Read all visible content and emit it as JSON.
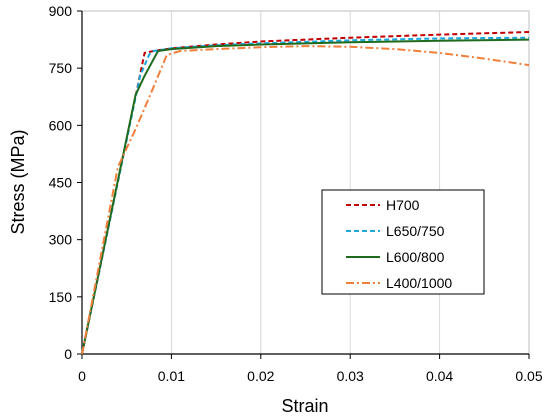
{
  "chart_data": {
    "type": "line",
    "title": "",
    "xlabel": "Strain",
    "ylabel": "Stress (MPa)",
    "xlim": [
      0,
      0.05
    ],
    "ylim": [
      0,
      900
    ],
    "xticks": [
      0,
      0.01,
      0.02,
      0.03,
      0.04,
      0.05
    ],
    "xtick_labels": [
      "0",
      "0.01",
      "0.02",
      "0.03",
      "0.04",
      "0.05"
    ],
    "yticks": [
      0,
      150,
      300,
      450,
      600,
      750,
      900
    ],
    "ytick_labels": [
      "0",
      "150",
      "300",
      "450",
      "600",
      "750",
      "900"
    ],
    "grid": "vertical",
    "legend_position": "center-right",
    "series": [
      {
        "name": "H700",
        "color": "#c00000",
        "dash": "dashed",
        "x": [
          0,
          0.007,
          0.008,
          0.01,
          0.015,
          0.02,
          0.03,
          0.04,
          0.05
        ],
        "y": [
          0,
          790,
          795,
          802,
          812,
          820,
          830,
          838,
          845
        ]
      },
      {
        "name": "L650/750",
        "color": "#1aa7e0",
        "dash": "dashed",
        "x": [
          0,
          0.0065,
          0.0075,
          0.008,
          0.01,
          0.015,
          0.02,
          0.03,
          0.04,
          0.05
        ],
        "y": [
          0,
          730,
          785,
          795,
          802,
          810,
          815,
          823,
          828,
          830
        ]
      },
      {
        "name": "L600/800",
        "color": "#1e6b1e",
        "dash": "solid",
        "x": [
          0,
          0.006,
          0.007,
          0.0085,
          0.01,
          0.015,
          0.02,
          0.03,
          0.04,
          0.05
        ],
        "y": [
          0,
          680,
          730,
          795,
          800,
          808,
          812,
          818,
          822,
          825
        ]
      },
      {
        "name": "L400/1000",
        "color": "#f07f3c",
        "dash": "dashdot",
        "x": [
          0,
          0.004,
          0.006,
          0.008,
          0.0095,
          0.011,
          0.015,
          0.02,
          0.025,
          0.03,
          0.035,
          0.04,
          0.045,
          0.05
        ],
        "y": [
          0,
          490,
          590,
          700,
          785,
          795,
          800,
          805,
          808,
          806,
          800,
          790,
          775,
          758
        ]
      }
    ]
  }
}
